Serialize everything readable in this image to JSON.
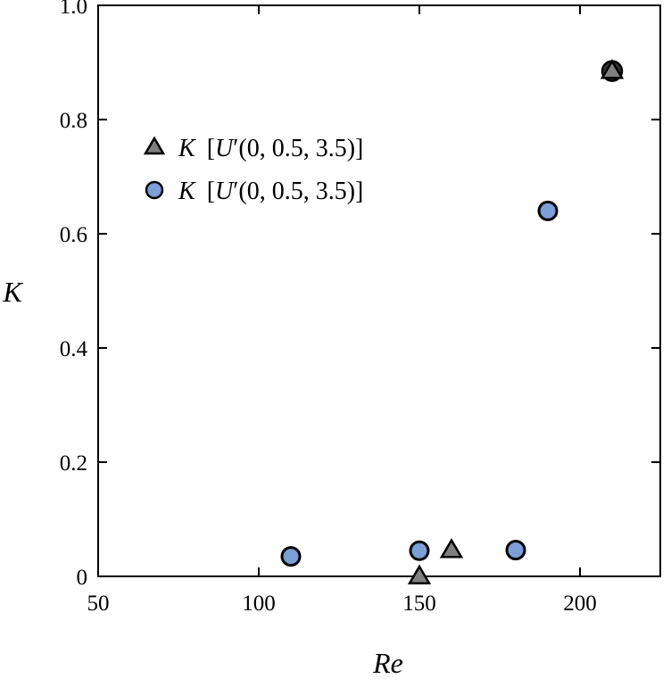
{
  "chart_data": {
    "type": "scatter",
    "xlabel": "Re",
    "ylabel": "K",
    "xlim": [
      50,
      225
    ],
    "ylim": [
      0,
      1.0
    ],
    "xticks": [
      50,
      100,
      150,
      200
    ],
    "xtick_labels": [
      "50",
      "100",
      "150",
      "200"
    ],
    "yticks": [
      0,
      0.2,
      0.4,
      0.6,
      0.8,
      1.0
    ],
    "ytick_labels": [
      "0",
      "0.2",
      "0.4",
      "0.6",
      "0.8",
      "1.0"
    ],
    "grid": false,
    "legend_position": "upper-left",
    "series": [
      {
        "name": "K [U′(0, 0.5, 3.5)]",
        "marker": "triangle",
        "color": "#808080",
        "x": [
          150,
          160,
          210
        ],
        "y": [
          0.0,
          0.046,
          0.885
        ]
      },
      {
        "name": "K [U′(0, 0.5, 3.5)]",
        "marker": "circle",
        "color": "#7b9fd6",
        "x": [
          110,
          150,
          180,
          190
        ],
        "y": [
          0.035,
          0.045,
          0.046,
          0.64
        ]
      }
    ],
    "overlay_points": [
      {
        "x": 210,
        "y": 0.885,
        "marker": "circle",
        "color": "#333333"
      }
    ]
  },
  "legend": {
    "entries": [
      {
        "k": "K",
        "open": "[",
        "u": "U",
        "rest": "′(0, 0.5, 3.5)]"
      },
      {
        "k": "K",
        "open": "[",
        "u": "U",
        "rest": "′(0, 0.5, 3.5)]"
      }
    ]
  }
}
